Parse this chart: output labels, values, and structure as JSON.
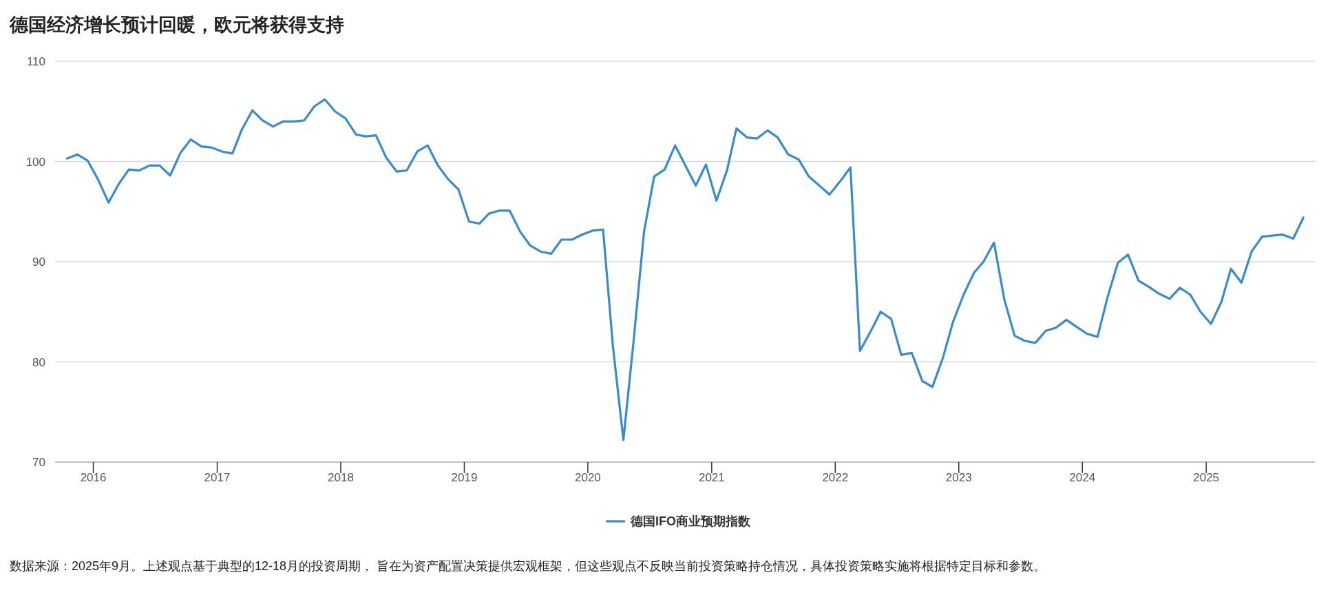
{
  "chart_data": {
    "type": "line",
    "title": "德国经济增长预计回暖，欧元将获得支持",
    "x": [
      "2015-10-15",
      "2015-11-15",
      "2015-12-15",
      "2016-01-15",
      "2016-02-15",
      "2016-03-15",
      "2016-04-15",
      "2016-05-15",
      "2016-06-15",
      "2016-07-15",
      "2016-08-15",
      "2016-09-15",
      "2016-10-15",
      "2016-11-15",
      "2016-12-15",
      "2017-01-15",
      "2017-02-15",
      "2017-03-15",
      "2017-04-15",
      "2017-05-15",
      "2017-06-15",
      "2017-07-15",
      "2017-08-15",
      "2017-09-15",
      "2017-10-15",
      "2017-11-15",
      "2017-12-15",
      "2018-01-15",
      "2018-02-15",
      "2018-03-15",
      "2018-04-15",
      "2018-05-15",
      "2018-06-15",
      "2018-07-15",
      "2018-08-15",
      "2018-09-15",
      "2018-10-15",
      "2018-11-15",
      "2018-12-15",
      "2019-01-15",
      "2019-02-15",
      "2019-03-15",
      "2019-04-15",
      "2019-05-15",
      "2019-06-15",
      "2019-07-15",
      "2019-08-15",
      "2019-09-15",
      "2019-10-15",
      "2019-11-15",
      "2019-12-15",
      "2020-01-15",
      "2020-02-15",
      "2020-03-15",
      "2020-04-15",
      "2020-05-15",
      "2020-06-15",
      "2020-07-15",
      "2020-08-15",
      "2020-09-15",
      "2020-10-15",
      "2020-11-15",
      "2020-12-15",
      "2021-01-15",
      "2021-02-15",
      "2021-03-15",
      "2021-04-15",
      "2021-05-15",
      "2021-06-15",
      "2021-07-15",
      "2021-08-15",
      "2021-09-15",
      "2021-10-15",
      "2021-11-15",
      "2021-12-15",
      "2022-01-15",
      "2022-02-15",
      "2022-03-15",
      "2022-04-15",
      "2022-05-15",
      "2022-06-15",
      "2022-07-15",
      "2022-08-15",
      "2022-09-15",
      "2022-10-15",
      "2022-11-15",
      "2022-12-15",
      "2023-01-15",
      "2023-02-15",
      "2023-03-15",
      "2023-04-15",
      "2023-05-15",
      "2023-06-15",
      "2023-07-15",
      "2023-08-15",
      "2023-09-15",
      "2023-10-15",
      "2023-11-15",
      "2023-12-15",
      "2024-01-15",
      "2024-02-15",
      "2024-03-15",
      "2024-04-15",
      "2024-05-15",
      "2024-06-15",
      "2024-07-15",
      "2024-08-15",
      "2024-09-15",
      "2024-10-15",
      "2024-11-15",
      "2024-12-15",
      "2025-01-15",
      "2025-02-15",
      "2025-03-15",
      "2025-04-15",
      "2025-05-15",
      "2025-06-15",
      "2025-07-15",
      "2025-08-15",
      "2025-09-15",
      "2025-10-15"
    ],
    "series": [
      {
        "name": "德国IFO商业预期指数",
        "color": "#3a8bcb",
        "values": [
          100.3,
          100.7,
          100.1,
          98.2,
          95.9,
          97.7,
          99.2,
          99.1,
          99.6,
          99.6,
          98.6,
          100.9,
          102.2,
          101.5,
          101.4,
          101.0,
          100.8,
          103.2,
          105.1,
          104.1,
          103.5,
          104.0,
          104.0,
          104.1,
          105.5,
          106.2,
          105.0,
          104.3,
          102.7,
          102.5,
          102.6,
          100.4,
          99.0,
          99.1,
          101.0,
          101.6,
          99.6,
          98.2,
          97.2,
          94.0,
          93.8,
          94.8,
          95.1,
          95.1,
          93.0,
          91.6,
          91.0,
          90.8,
          92.2,
          92.2,
          92.7,
          93.1,
          93.2,
          81.6,
          72.2,
          82.0,
          93.0,
          98.5,
          99.2,
          101.6,
          99.6,
          97.6,
          99.7,
          96.1,
          99.1,
          103.3,
          102.4,
          102.3,
          103.1,
          102.4,
          100.7,
          100.2,
          98.5,
          97.6,
          96.7,
          98.0,
          99.4,
          81.1,
          83.0,
          85.0,
          84.3,
          80.7,
          80.9,
          78.1,
          77.5,
          80.4,
          84.0,
          86.7,
          88.9,
          90.0,
          91.9,
          86.3,
          82.6,
          82.1,
          81.9,
          83.1,
          83.4,
          84.2,
          83.5,
          82.8,
          82.5,
          86.4,
          89.9,
          90.7,
          88.1,
          87.5,
          86.8,
          86.3,
          87.4,
          86.7,
          85.0,
          83.8,
          86.0,
          89.3,
          87.9,
          91.0,
          92.5,
          92.6,
          92.7,
          92.3,
          94.4
        ]
      }
    ],
    "xlim": [
      "2015-09-10",
      "2025-11-18"
    ],
    "xticks": [
      {
        "value": "2016-01-01",
        "label": "2016"
      },
      {
        "value": "2017-01-01",
        "label": "2017"
      },
      {
        "value": "2018-01-01",
        "label": "2018"
      },
      {
        "value": "2019-01-01",
        "label": "2019"
      },
      {
        "value": "2020-01-01",
        "label": "2020"
      },
      {
        "value": "2021-01-01",
        "label": "2021"
      },
      {
        "value": "2022-01-01",
        "label": "2022"
      },
      {
        "value": "2023-01-01",
        "label": "2023"
      },
      {
        "value": "2024-01-01",
        "label": "2024"
      },
      {
        "value": "2025-01-01",
        "label": "2025"
      }
    ],
    "ylim": [
      70,
      110
    ],
    "yticks": [
      70,
      80,
      90,
      100,
      110
    ],
    "grid": "y",
    "legend": "bottom",
    "marker": "none",
    "line_style": "solid",
    "annotations": [
      "数据来源：2025年9月。上述观点基于典型的12-18月的投资周期， 旨在为资产配置决策提供宏观框架，但这些观点不反映当前投资策略持仓情况，具体投资策略实施将根据特定目标和参数。"
    ]
  }
}
